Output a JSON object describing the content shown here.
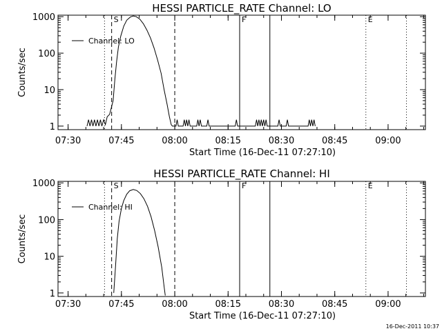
{
  "chart_data": [
    {
      "type": "line",
      "title": "HESSI PARTICLE_RATE Channel: LO",
      "xlabel": "Start Time (16-Dec-11 07:27:10)",
      "ylabel": "Counts/sec",
      "y_scale": "log",
      "ylim": [
        0.8,
        1100
      ],
      "xlim": [
        "07:27:10",
        "09:10:30"
      ],
      "x_ticks": [
        "07:30",
        "07:45",
        "08:00",
        "08:15",
        "08:30",
        "08:45",
        "09:00"
      ],
      "y_ticks": [
        "1",
        "10",
        "100",
        "1000"
      ],
      "legend": {
        "label": "Channel: LO",
        "placement": "top-left"
      },
      "markers": [
        {
          "time": "07:40:15",
          "label": "",
          "style": "dotted"
        },
        {
          "time": "07:42:15",
          "label": "S",
          "style": "dashed"
        },
        {
          "time": "08:00:00",
          "label": "",
          "style": "dashed"
        },
        {
          "time": "08:18:15",
          "label": "F",
          "style": "solid"
        },
        {
          "time": "08:26:45",
          "label": "",
          "style": "solid"
        },
        {
          "time": "08:53:45",
          "label": "E",
          "style": "dotted"
        },
        {
          "time": "09:05:10",
          "label": "",
          "style": "dotted"
        }
      ],
      "series": [
        {
          "name": "Channel: LO",
          "points": [
            [
              "07:35:20",
              1
            ],
            [
              "07:35:45",
              1.5
            ],
            [
              "07:36:10",
              1
            ],
            [
              "07:36:35",
              1.5
            ],
            [
              "07:37:00",
              1
            ],
            [
              "07:37:25",
              1.5
            ],
            [
              "07:37:50",
              1
            ],
            [
              "07:38:15",
              1.5
            ],
            [
              "07:38:40",
              1
            ],
            [
              "07:39:05",
              1.5
            ],
            [
              "07:39:30",
              1
            ],
            [
              "07:40:00",
              1.5
            ],
            [
              "07:40:30",
              1.1
            ],
            [
              "07:41:00",
              1.8
            ],
            [
              "07:41:40",
              2.1
            ],
            [
              "07:42:10",
              3.2
            ],
            [
              "07:42:40",
              5
            ],
            [
              "07:43:10",
              20
            ],
            [
              "07:43:40",
              60
            ],
            [
              "07:44:10",
              150
            ],
            [
              "07:44:50",
              300
            ],
            [
              "07:45:40",
              550
            ],
            [
              "07:46:30",
              800
            ],
            [
              "07:47:30",
              980
            ],
            [
              "07:48:20",
              1050
            ],
            [
              "07:49:10",
              1000
            ],
            [
              "07:50:10",
              860
            ],
            [
              "07:51:10",
              640
            ],
            [
              "07:52:10",
              430
            ],
            [
              "07:53:10",
              260
            ],
            [
              "07:54:10",
              140
            ],
            [
              "07:55:10",
              65
            ],
            [
              "07:56:10",
              28
            ],
            [
              "07:57:00",
              10
            ],
            [
              "07:57:50",
              4
            ],
            [
              "07:58:30",
              1.8
            ],
            [
              "07:59:00",
              1.1
            ],
            [
              "07:59:20",
              1
            ],
            [
              "08:00:20",
              1
            ],
            [
              "08:00:40",
              1.5
            ],
            [
              "08:01:00",
              1
            ],
            [
              "08:02:20",
              1
            ],
            [
              "08:02:40",
              1.5
            ],
            [
              "08:03:00",
              1
            ],
            [
              "08:03:20",
              1.5
            ],
            [
              "08:03:40",
              1
            ],
            [
              "08:04:00",
              1.5
            ],
            [
              "08:04:20",
              1
            ],
            [
              "08:06:10",
              1
            ],
            [
              "08:06:30",
              1.5
            ],
            [
              "08:06:50",
              1
            ],
            [
              "08:07:10",
              1.5
            ],
            [
              "08:07:30",
              1
            ],
            [
              "08:09:00",
              1
            ],
            [
              "08:09:20",
              1.5
            ],
            [
              "08:09:40",
              1
            ],
            [
              "08:17:00",
              1
            ],
            [
              "08:17:20",
              1.5
            ],
            [
              "08:17:40",
              1
            ],
            [
              "08:22:40",
              1
            ],
            [
              "08:23:00",
              1.5
            ],
            [
              "08:23:20",
              1
            ],
            [
              "08:23:40",
              1.5
            ],
            [
              "08:24:00",
              1
            ],
            [
              "08:24:20",
              1.5
            ],
            [
              "08:24:40",
              1
            ],
            [
              "08:25:00",
              1.5
            ],
            [
              "08:25:20",
              1
            ],
            [
              "08:25:40",
              1.5
            ],
            [
              "08:26:00",
              1
            ],
            [
              "08:29:00",
              1
            ],
            [
              "08:29:20",
              1.5
            ],
            [
              "08:29:40",
              1
            ],
            [
              "08:31:20",
              1
            ],
            [
              "08:31:40",
              1.5
            ],
            [
              "08:32:00",
              1
            ],
            [
              "08:37:30",
              1
            ],
            [
              "08:37:50",
              1.5
            ],
            [
              "08:38:10",
              1
            ],
            [
              "08:38:30",
              1.5
            ],
            [
              "08:38:50",
              1
            ],
            [
              "08:39:10",
              1.5
            ],
            [
              "08:39:30",
              1
            ]
          ]
        }
      ]
    },
    {
      "type": "line",
      "title": "HESSI PARTICLE_RATE Channel: HI",
      "xlabel": "Start Time (16-Dec-11 07:27:10)",
      "ylabel": "Counts/sec",
      "y_scale": "log",
      "ylim": [
        0.8,
        1100
      ],
      "xlim": [
        "07:27:10",
        "09:10:30"
      ],
      "x_ticks": [
        "07:30",
        "07:45",
        "08:00",
        "08:15",
        "08:30",
        "08:45",
        "09:00"
      ],
      "y_ticks": [
        "1",
        "10",
        "100",
        "1000"
      ],
      "legend": {
        "label": "Channel: HI",
        "placement": "top-left"
      },
      "markers": [
        {
          "time": "07:40:15",
          "label": "",
          "style": "dotted"
        },
        {
          "time": "07:42:15",
          "label": "S",
          "style": "dashed"
        },
        {
          "time": "08:00:00",
          "label": "",
          "style": "dashed"
        },
        {
          "time": "08:18:15",
          "label": "F",
          "style": "solid"
        },
        {
          "time": "08:26:45",
          "label": "",
          "style": "solid"
        },
        {
          "time": "08:53:45",
          "label": "E",
          "style": "dotted"
        },
        {
          "time": "09:05:10",
          "label": "",
          "style": "dotted"
        }
      ],
      "series": [
        {
          "name": "Channel: HI",
          "points": [
            [
              "07:42:50",
              1
            ],
            [
              "07:43:20",
              5
            ],
            [
              "07:43:50",
              30
            ],
            [
              "07:44:20",
              90
            ],
            [
              "07:45:00",
              200
            ],
            [
              "07:45:40",
              330
            ],
            [
              "07:46:30",
              490
            ],
            [
              "07:47:20",
              610
            ],
            [
              "07:48:20",
              660
            ],
            [
              "07:49:20",
              620
            ],
            [
              "07:50:20",
              510
            ],
            [
              "07:51:20",
              370
            ],
            [
              "07:52:20",
              230
            ],
            [
              "07:53:20",
              120
            ],
            [
              "07:54:20",
              50
            ],
            [
              "07:55:20",
              18
            ],
            [
              "07:56:20",
              5
            ],
            [
              "07:57:00",
              1.5
            ],
            [
              "07:57:20",
              0.85
            ]
          ]
        }
      ]
    }
  ],
  "footer": {
    "stamp": "16-Dec-2011 10:37"
  }
}
